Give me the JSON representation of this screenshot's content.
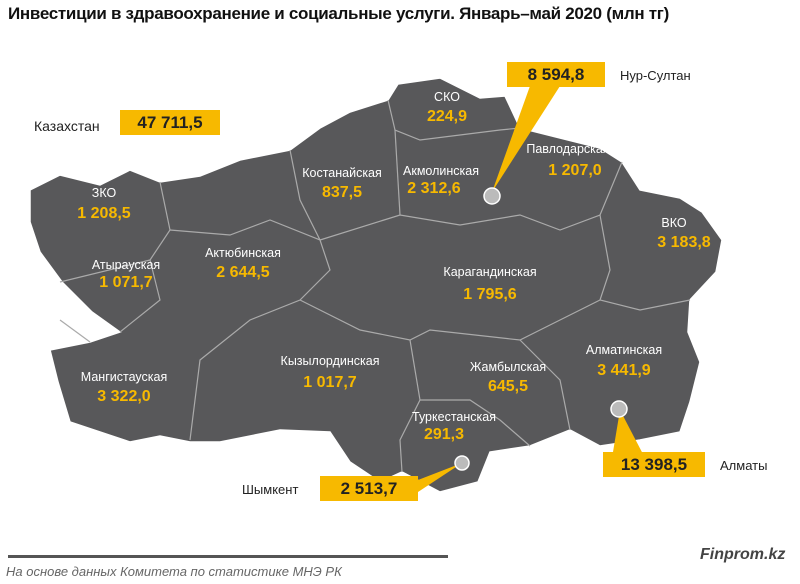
{
  "title": "Инвестиции в здравоохранение и социальные услуги. Январь–май 2020 (млн тг)",
  "total": {
    "label": "Казахстан",
    "value": "47 711,5"
  },
  "regions": [
    {
      "name": "ЗКО",
      "value": "1 208,5"
    },
    {
      "name": "Атырауская",
      "value": "1 071,7"
    },
    {
      "name": "Мангистауская",
      "value": "3 322,0"
    },
    {
      "name": "Актюбинская",
      "value": "2 644,5"
    },
    {
      "name": "Костанайская",
      "value": "837,5"
    },
    {
      "name": "СКО",
      "value": "224,9"
    },
    {
      "name": "Акмолинская",
      "value": "2 312,6"
    },
    {
      "name": "Павлодарская",
      "value": "1 207,0"
    },
    {
      "name": "ВКО",
      "value": "3 183,8"
    },
    {
      "name": "Карагандинская",
      "value": "1 795,6"
    },
    {
      "name": "Кызылординская",
      "value": "1 017,7"
    },
    {
      "name": "Жамбылская",
      "value": "645,5"
    },
    {
      "name": "Туркестанская",
      "value": "291,3"
    },
    {
      "name": "Алматинская",
      "value": "3 441,9"
    }
  ],
  "cities": [
    {
      "name": "Нур-Султан",
      "value": "8 594,8"
    },
    {
      "name": "Алматы",
      "value": "13 398,5"
    },
    {
      "name": "Шымкент",
      "value": "2 513,7"
    }
  ],
  "footer": {
    "brand": "Finprom.kz",
    "source": "На основе данных Комитета по статистике МНЭ РК"
  },
  "colors": {
    "map": "#58585a",
    "accent": "#f7b900"
  }
}
